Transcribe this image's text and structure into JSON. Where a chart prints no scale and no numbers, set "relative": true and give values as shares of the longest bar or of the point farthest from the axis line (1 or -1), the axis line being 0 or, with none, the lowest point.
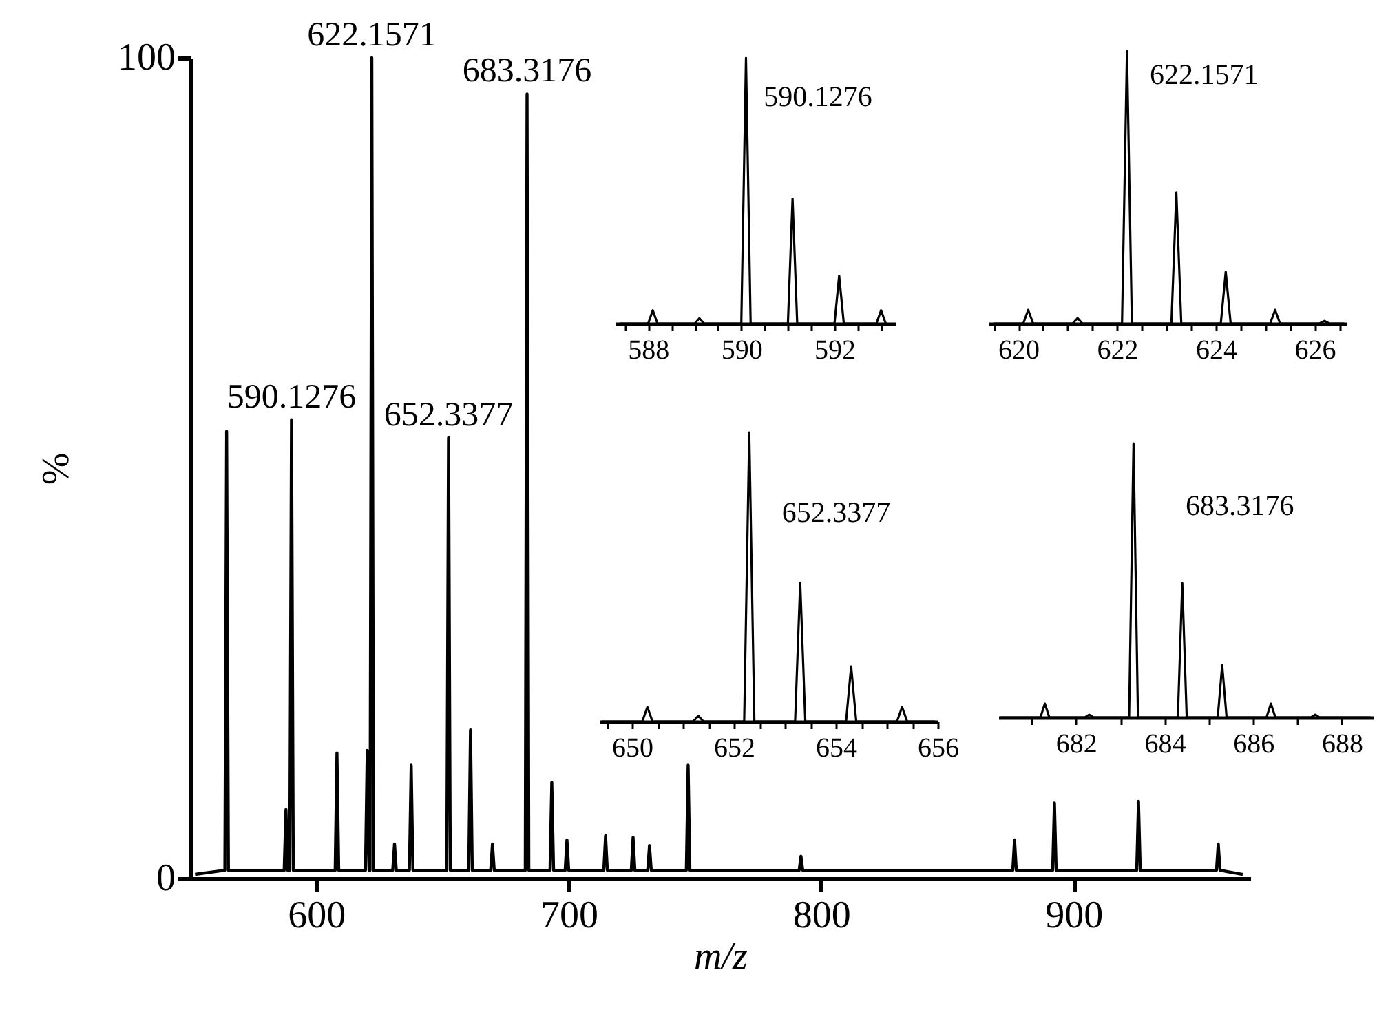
{
  "chart_data": [
    {
      "type": "line",
      "xlabel": "m/z",
      "ylabel": "%",
      "xlim": [
        550,
        970
      ],
      "ylim": [
        0,
        100
      ],
      "xticks": [
        600,
        700,
        800,
        900
      ],
      "yticks": [
        0,
        100
      ],
      "color": "#000000",
      "x": [
        552,
        563.8,
        564.5,
        565.2,
        587.3,
        588,
        588.7,
        589.5,
        590.2,
        590.9,
        607.5,
        608.2,
        608.9,
        619.5,
        620.2,
        620.9,
        621.3,
        622.0,
        622.7,
        630.3,
        631,
        631.7,
        636.9,
        637.6,
        638.3,
        651.7,
        652.4,
        653.1,
        660.4,
        661.1,
        661.8,
        669.1,
        669.8,
        670.5,
        682.8,
        683.5,
        684.2,
        692.6,
        693.3,
        694.0,
        698.6,
        699.3,
        700.0,
        713.9,
        714.6,
        715.3,
        724.8,
        725.5,
        726.2,
        731.3,
        732,
        732.7,
        746.6,
        747.3,
        748.0,
        791.3,
        792,
        792.7,
        875.9,
        876.6,
        877.3,
        891.7,
        892.4,
        893.1,
        925.0,
        925.7,
        926.4,
        956.6,
        957.3,
        958.0,
        967
      ],
      "values": [
        0.5,
        1,
        54.5,
        1,
        1,
        8.4,
        1,
        1,
        55.9,
        1,
        1,
        15.3,
        1,
        1,
        15.6,
        1,
        1,
        100,
        1,
        1,
        4.2,
        1,
        1,
        13.8,
        1,
        1,
        53.7,
        1,
        1,
        18.1,
        1,
        1,
        4.2,
        1,
        1,
        95.6,
        1,
        1,
        11.7,
        1,
        1,
        4.7,
        1,
        1,
        5.2,
        1,
        1,
        5,
        1,
        1,
        4,
        1,
        1,
        13.8,
        1,
        1,
        2.7,
        1,
        1,
        4.7,
        1,
        1,
        9.2,
        1,
        1,
        9.4,
        1,
        1,
        4.2,
        1,
        0.5
      ],
      "annotations": [
        {
          "text": "590.1276",
          "x": 590.2,
          "y": 55.9
        },
        {
          "text": "622.1571",
          "x": 622.0,
          "y": 100
        },
        {
          "text": "652.3377",
          "x": 652.4,
          "y": 53.7
        },
        {
          "text": "683.3176",
          "x": 683.5,
          "y": 95.6
        }
      ]
    },
    {
      "type": "line",
      "relative": true,
      "tick_labels": "x",
      "xlim": [
        587.3,
        593.3
      ],
      "color": "#000000",
      "xticks": [
        {
          "value": 587.5,
          "label": null
        },
        588,
        {
          "value": 588.5,
          "label": null
        },
        {
          "value": 589,
          "label": null
        },
        {
          "value": 589.5,
          "label": null
        },
        590,
        {
          "value": 590.5,
          "label": null
        },
        {
          "value": 591,
          "label": null
        },
        {
          "value": 591.5,
          "label": null
        },
        592,
        {
          "value": 592.5,
          "label": null
        },
        {
          "value": 593,
          "label": null
        }
      ],
      "x": [
        587.4,
        588.0,
        588.1,
        588.2,
        589.0,
        589.1,
        589.2,
        590.0,
        590.1,
        590.2,
        591.0,
        591.1,
        591.2,
        592.0,
        592.1,
        592.2,
        592.9,
        593.0,
        593.1
      ],
      "values": [
        0,
        0,
        0.05,
        0,
        0,
        0.02,
        0,
        0,
        1,
        0,
        0,
        0.47,
        0,
        0,
        0.18,
        0,
        0,
        0.05,
        0
      ],
      "annotations": [
        "590.1276"
      ]
    },
    {
      "type": "line",
      "relative": true,
      "tick_labels": "x",
      "xlim": [
        619.4,
        626.65
      ],
      "color": "#000000",
      "xticks": [
        {
          "value": 619.5,
          "label": null
        },
        620,
        {
          "value": 620.5,
          "label": null
        },
        {
          "value": 621,
          "label": null
        },
        {
          "value": 621.5,
          "label": null
        },
        622,
        {
          "value": 622.5,
          "label": null
        },
        {
          "value": 623,
          "label": null
        },
        {
          "value": 623.5,
          "label": null
        },
        624,
        {
          "value": 624.5,
          "label": null
        },
        {
          "value": 625,
          "label": null
        },
        {
          "value": 625.5,
          "label": null
        },
        626,
        {
          "value": 626.5,
          "label": null
        }
      ],
      "x": [
        619.5,
        620.1,
        620.2,
        620.3,
        621.1,
        621.2,
        621.3,
        622.1,
        622.2,
        622.3,
        623.1,
        623.2,
        623.3,
        624.1,
        624.2,
        624.3,
        625.1,
        625.2,
        625.3,
        626.1,
        626.2,
        626.3,
        626.6
      ],
      "values": [
        0,
        0,
        0.05,
        0,
        0,
        0.02,
        0,
        0,
        1,
        0,
        0,
        0.48,
        0,
        0,
        0.19,
        0,
        0,
        0.05,
        0,
        0,
        0.01,
        0,
        0
      ],
      "annotations": [
        "622.1571"
      ]
    },
    {
      "type": "line",
      "relative": true,
      "tick_labels": "x",
      "xlim": [
        649.35,
        656
      ],
      "color": "#000000",
      "xticks": [
        {
          "value": 649.5,
          "label": null
        },
        650,
        {
          "value": 650.5,
          "label": null
        },
        {
          "value": 651,
          "label": null
        },
        {
          "value": 651.5,
          "label": null
        },
        652,
        {
          "value": 652.5,
          "label": null
        },
        {
          "value": 653,
          "label": null
        },
        {
          "value": 653.5,
          "label": null
        },
        654,
        {
          "value": 654.5,
          "label": null
        },
        {
          "value": 655,
          "label": null
        },
        {
          "value": 655.5,
          "label": null
        },
        656
      ],
      "x": [
        649.4,
        650.2,
        650.3,
        650.4,
        651.2,
        651.3,
        651.4,
        652.2,
        652.3,
        652.4,
        653.2,
        653.3,
        653.4,
        654.2,
        654.3,
        654.4,
        655.2,
        655.3,
        655.4,
        655.95
      ],
      "values": [
        0,
        0,
        0.05,
        0,
        0,
        0.02,
        0,
        0,
        1,
        0,
        0,
        0.48,
        0,
        0,
        0.19,
        0,
        0,
        0.05,
        0,
        0
      ],
      "annotations": [
        "652.3377"
      ]
    },
    {
      "type": "line",
      "relative": true,
      "tick_labels": "x",
      "xlim": [
        680.25,
        688.7
      ],
      "color": "#000000",
      "xticks": [
        {
          "value": 681,
          "label": null
        },
        682,
        {
          "value": 683,
          "label": null
        },
        684,
        {
          "value": 685,
          "label": null
        },
        686,
        {
          "value": 687,
          "label": null
        },
        688
      ],
      "x": [
        680.3,
        681.2,
        681.3,
        681.4,
        682.2,
        682.3,
        682.4,
        683.2,
        683.3,
        683.4,
        684.3,
        684.4,
        684.5,
        685.2,
        685.3,
        685.4,
        686.3,
        686.4,
        686.5,
        687.3,
        687.4,
        687.5,
        688.65
      ],
      "values": [
        0,
        0,
        0.05,
        0,
        0,
        0.01,
        0,
        0,
        1,
        0,
        0,
        0.49,
        0,
        0,
        0.19,
        0,
        0,
        0.05,
        0,
        0,
        0.01,
        0,
        0
      ],
      "annotations": [
        "683.3176"
      ]
    }
  ]
}
